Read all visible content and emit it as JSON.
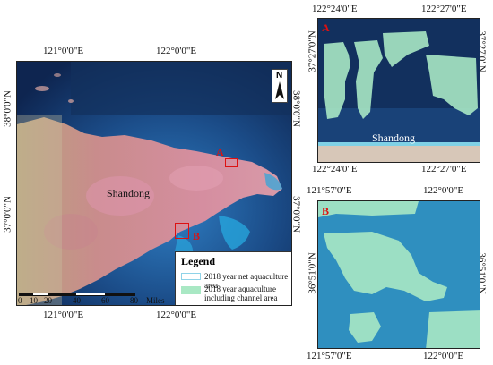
{
  "main_map": {
    "top_lon_labels": [
      "121°0'0\"E",
      "122°0'0\"E"
    ],
    "bottom_lon_labels": [
      "121°0'0\"E",
      "122°0'0\"E"
    ],
    "left_lat_labels": [
      "38°0'0\"N",
      "37°0'0\"N"
    ],
    "right_lat_labels": [
      "38°0'0\"N",
      "37°0'0\"N"
    ],
    "place_label": "Shandong",
    "marker_a": "A",
    "marker_b": "B",
    "north_label": "N",
    "scale": {
      "ticks": [
        "0",
        "10",
        "20",
        "40",
        "60",
        "80"
      ],
      "unit": "Miles"
    },
    "legend": {
      "title": "Legend",
      "items": [
        {
          "label": "2018 year net aquaculture area",
          "color": "#8fd3e8",
          "style": "outline"
        },
        {
          "label": "2018 year aquaculture including channel area",
          "color": "#a9e8c4",
          "style": "fill"
        }
      ]
    }
  },
  "inset_a": {
    "letter": "A",
    "top_lon_labels": [
      "122°24'0\"E",
      "122°27'0\"E"
    ],
    "bottom_lon_labels": [
      "122°24'0\"E",
      "122°27'0\"E"
    ],
    "left_lat_label": "37°27'0\"N",
    "right_lat_label": "37°27'0\"N",
    "place_label": "Shandong"
  },
  "inset_b": {
    "letter": "B",
    "top_lon_labels": [
      "121°57'0\"E",
      "122°0'0\"E"
    ],
    "bottom_lon_labels": [
      "121°57'0\"E",
      "122°0'0\"E"
    ],
    "left_lat_label": "36°51'0\"N",
    "right_lat_label": "36°51'0\"N"
  },
  "colors": {
    "sea_deep": "#0f2a5a",
    "sea_mid": "#1d4f8a",
    "sea_shallow": "#2a8fd0",
    "land": "#c98c8c",
    "land_bright": "#d98aa5",
    "aquaculture": "#a9e8c4",
    "marker": "#dd1111"
  }
}
